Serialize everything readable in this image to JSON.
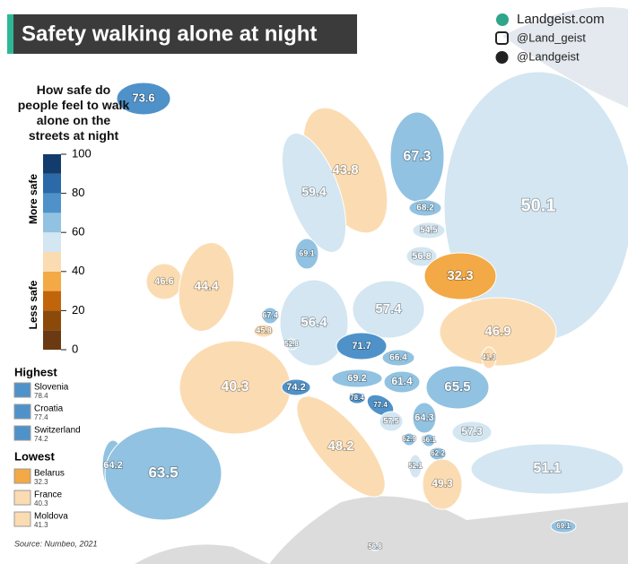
{
  "title": "Safety walking alone at night",
  "credits": [
    "Landgeist.com",
    "@Land_geist",
    "@Landgeist"
  ],
  "legend": {
    "title": "How safe do people feel to walk alone on the streets at night",
    "more": "More safe",
    "less": "Less safe",
    "ticks": [
      100,
      80,
      60,
      40,
      20,
      0
    ],
    "bands": [
      0,
      10,
      20,
      30,
      40,
      50,
      60,
      70,
      80,
      90,
      100
    ],
    "colors": [
      "#6b3a12",
      "#8c4a0a",
      "#c0650c",
      "#f3a945",
      "#fbdcb2",
      "#d3e6f2",
      "#92c2e1",
      "#4f92c9",
      "#2b69a9",
      "#123c6c"
    ]
  },
  "highest": {
    "label": "Highest",
    "items": [
      {
        "name": "Slovenia",
        "value": 78.4
      },
      {
        "name": "Croatia",
        "value": 77.4
      },
      {
        "name": "Switzerland",
        "value": 74.2
      }
    ]
  },
  "lowest": {
    "label": "Lowest",
    "items": [
      {
        "name": "Belarus",
        "value": 32.3
      },
      {
        "name": "France",
        "value": 40.3
      },
      {
        "name": "Moldova",
        "value": 41.3
      }
    ]
  },
  "regions": [
    50.1,
    73.6,
    43.8,
    59.4,
    67.3,
    68.2,
    54.5,
    56.8,
    32.3,
    69.1,
    46.6,
    44.4,
    46.9,
    57.4,
    56.4,
    40.3,
    67.4,
    45.8,
    52.8,
    41.3,
    71.7,
    66.4,
    74.2,
    69.2,
    61.4,
    65.5,
    78.4,
    77.4,
    57.5,
    64.3,
    57.3,
    62.9,
    66.1,
    62.2,
    52.1,
    48.2,
    49.3,
    64.2,
    63.5,
    51.1,
    69.1,
    56.8
  ],
  "source": "Source: Numbeo, 2021"
}
